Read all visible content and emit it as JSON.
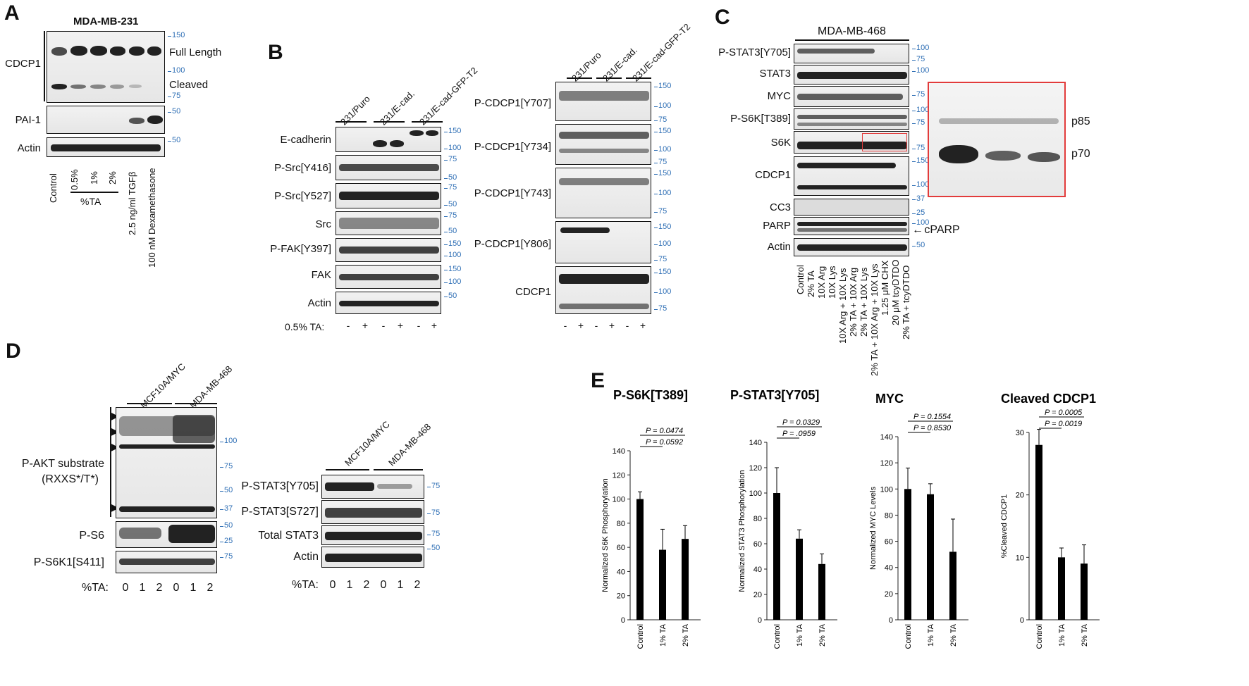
{
  "panels": {
    "A": {
      "label": "A",
      "cell_line": "MDA-MB-231",
      "rows": [
        "CDCP1",
        "PAI-1",
        "Actin"
      ],
      "band_labels": [
        "Full Length",
        "Cleaved"
      ],
      "mw": [
        "150",
        "100",
        "75",
        "50",
        "50"
      ],
      "lanes": [
        "Control",
        "0.5%",
        "1%",
        "2%",
        "2.5 ng/ml TGFβ",
        "100 nM Dexamethasone"
      ],
      "group_label": "%TA"
    },
    "B": {
      "label": "B",
      "groups": [
        "231/Puro",
        "231/E-cad.",
        "231/E-cad-GFP-T2"
      ],
      "rows_left": [
        "E-cadherin",
        "P-Src[Y416]",
        "P-Src[Y527]",
        "Src",
        "P-FAK[Y397]",
        "FAK",
        "Actin"
      ],
      "rows_right": [
        "P-CDCP1[Y707]",
        "P-CDCP1[Y734]",
        "P-CDCP1[Y743]",
        "P-CDCP1[Y806]",
        "CDCP1"
      ],
      "treatment_label": "0.5% TA:",
      "signs": [
        "-",
        "+",
        "-",
        "+",
        "-",
        "+"
      ],
      "mw_left": [
        "150",
        "100",
        "75",
        "50",
        "75",
        "50",
        "75",
        "50",
        "150",
        "100",
        "150",
        "100",
        "50"
      ],
      "mw_right": [
        "150",
        "100",
        "75",
        "150",
        "100",
        "75",
        "150",
        "100",
        "75",
        "150",
        "100",
        "75",
        "150",
        "100",
        "75"
      ]
    },
    "C": {
      "label": "C",
      "cell_line": "MDA-MB-468",
      "rows": [
        "P-STAT3[Y705]",
        "STAT3",
        "MYC",
        "P-S6K[T389]",
        "S6K",
        "CDCP1",
        "CC3",
        "PARP",
        "Actin"
      ],
      "mw": [
        "100",
        "75",
        "100",
        "75",
        "100",
        "75",
        "75",
        "150",
        "100",
        "37",
        "25",
        "100",
        "50"
      ],
      "arrow_label": "cPARP",
      "inset_labels": [
        "p85",
        "p70"
      ],
      "lanes": [
        "Control",
        "2% TA",
        "10X Arg",
        "10X Lys",
        "10X Arg + 10X Lys",
        "2% TA + 10X Arg",
        "2% TA + 10X Lys",
        "2% TA + 10X Arg + 10X Lys",
        "1.25 μM CHX",
        "20 μM tcyDTDO",
        "2% TA + tcyDTDO"
      ]
    },
    "D": {
      "label": "D",
      "groups": [
        "MCF10A/MYC",
        "MDA-MB-468"
      ],
      "rows_left": [
        "P-AKT substrate",
        "(RXXS*/T*)",
        "P-S6",
        "P-S6K1[S411]"
      ],
      "rows_right": [
        "P-STAT3[Y705]",
        "P-STAT3[S727]",
        "Total STAT3",
        "Actin"
      ],
      "mw_left": [
        "100",
        "75",
        "50",
        "37",
        "50",
        "25",
        "75"
      ],
      "mw_right": [
        "75",
        "75",
        "75",
        "50"
      ],
      "ta_label": "%TA:",
      "ta_values": [
        "0",
        "1",
        "2",
        "0",
        "1",
        "2"
      ]
    },
    "E": {
      "label": "E"
    }
  },
  "chart_data": [
    {
      "type": "bar",
      "title": "P-S6K[T389]",
      "ylabel": "Normalized S6K Phosphorylation",
      "categories": [
        "Control",
        "1% TA",
        "2% TA"
      ],
      "values": [
        100,
        58,
        67
      ],
      "errors": [
        6,
        17,
        11
      ],
      "ylim": [
        0,
        140
      ],
      "yticks": [
        0,
        20,
        40,
        60,
        80,
        100,
        120,
        140
      ],
      "pvalues": [
        "P = 0.0474",
        "P = 0.0592"
      ]
    },
    {
      "type": "bar",
      "title": "P-STAT3[Y705]",
      "ylabel": "Normalized STAT3 Phosphorylation",
      "categories": [
        "Control",
        "1% TA",
        "2% TA"
      ],
      "values": [
        100,
        64,
        44
      ],
      "errors": [
        20,
        7,
        8
      ],
      "ylim": [
        0,
        140
      ],
      "yticks": [
        0,
        20,
        40,
        60,
        80,
        100,
        120,
        140
      ],
      "pvalues": [
        "P = 0.0329",
        "P = .0959"
      ]
    },
    {
      "type": "bar",
      "title": "MYC",
      "ylabel": "Normalized MYC Levels",
      "categories": [
        "Control",
        "1% TA",
        "2% TA"
      ],
      "values": [
        100,
        96,
        52
      ],
      "errors": [
        16,
        8,
        25
      ],
      "ylim": [
        0,
        140
      ],
      "yticks": [
        0,
        20,
        40,
        60,
        80,
        100,
        120,
        140
      ],
      "pvalues": [
        "P = 0.1554",
        "P = 0.8530"
      ]
    },
    {
      "type": "bar",
      "title": "Cleaved CDCP1",
      "ylabel": "%Cleaved CDCP1",
      "categories": [
        "Control",
        "1% TA",
        "2% TA"
      ],
      "values": [
        28,
        10,
        9
      ],
      "errors": [
        2.5,
        1.5,
        3
      ],
      "ylim": [
        0,
        30
      ],
      "yticks": [
        0,
        10,
        20,
        30
      ],
      "pvalues": [
        "P = 0.0005",
        "P = 0.0019"
      ]
    }
  ]
}
